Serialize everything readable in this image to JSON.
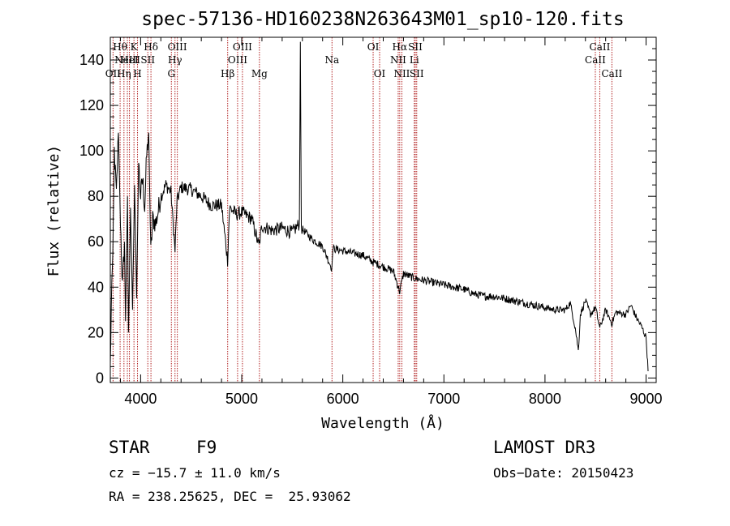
{
  "chart_data": {
    "type": "line",
    "title": "spec-57136-HD160238N263643M01_sp10-120.fits",
    "xlabel": "Wavelength (Å)",
    "ylabel": "Flux (relative)",
    "xlim": [
      3700,
      9100
    ],
    "ylim": [
      -2,
      150
    ],
    "x_ticks": [
      4000,
      5000,
      6000,
      7000,
      8000,
      9000
    ],
    "y_ticks": [
      0,
      20,
      40,
      60,
      80,
      100,
      120,
      140
    ],
    "grid": false,
    "series": [
      {
        "name": "flux",
        "anchors": [
          [
            3700,
            5
          ],
          [
            3710,
            30
          ],
          [
            3725,
            55
          ],
          [
            3740,
            100
          ],
          [
            3760,
            80
          ],
          [
            3780,
            108
          ],
          [
            3800,
            70
          ],
          [
            3820,
            40
          ],
          [
            3840,
            60
          ],
          [
            3850,
            25
          ],
          [
            3870,
            80
          ],
          [
            3880,
            20
          ],
          [
            3900,
            75
          ],
          [
            3920,
            30
          ],
          [
            3940,
            85
          ],
          [
            3960,
            35
          ],
          [
            3980,
            95
          ],
          [
            4000,
            80
          ],
          [
            4020,
            88
          ],
          [
            4040,
            75
          ],
          [
            4060,
            98
          ],
          [
            4080,
            108
          ],
          [
            4100,
            55
          ],
          [
            4120,
            70
          ],
          [
            4150,
            68
          ],
          [
            4200,
            80
          ],
          [
            4250,
            85
          ],
          [
            4300,
            82
          ],
          [
            4340,
            56
          ],
          [
            4360,
            78
          ],
          [
            4400,
            84
          ],
          [
            4500,
            83
          ],
          [
            4600,
            80
          ],
          [
            4700,
            76
          ],
          [
            4800,
            76
          ],
          [
            4860,
            52
          ],
          [
            4880,
            75
          ],
          [
            4950,
            72
          ],
          [
            5000,
            73
          ],
          [
            5100,
            70
          ],
          [
            5170,
            58
          ],
          [
            5200,
            67
          ],
          [
            5300,
            65
          ],
          [
            5400,
            66
          ],
          [
            5500,
            64
          ],
          [
            5570,
            68
          ],
          [
            5580,
            148
          ],
          [
            5590,
            66
          ],
          [
            5700,
            61
          ],
          [
            5800,
            58
          ],
          [
            5893,
            48
          ],
          [
            5900,
            57
          ],
          [
            6000,
            56
          ],
          [
            6100,
            55
          ],
          [
            6200,
            54
          ],
          [
            6300,
            51
          ],
          [
            6400,
            49
          ],
          [
            6500,
            47
          ],
          [
            6563,
            38
          ],
          [
            6600,
            46
          ],
          [
            6700,
            44
          ],
          [
            6800,
            43
          ],
          [
            6900,
            42
          ],
          [
            7000,
            41
          ],
          [
            7100,
            40
          ],
          [
            7200,
            39
          ],
          [
            7300,
            37
          ],
          [
            7400,
            36
          ],
          [
            7500,
            36
          ],
          [
            7600,
            35
          ],
          [
            7700,
            34
          ],
          [
            7800,
            33
          ],
          [
            7900,
            32
          ],
          [
            8000,
            31
          ],
          [
            8100,
            30
          ],
          [
            8200,
            30
          ],
          [
            8250,
            33
          ],
          [
            8300,
            22
          ],
          [
            8330,
            12
          ],
          [
            8350,
            28
          ],
          [
            8400,
            34
          ],
          [
            8450,
            28
          ],
          [
            8500,
            31
          ],
          [
            8542,
            22
          ],
          [
            8600,
            30
          ],
          [
            8662,
            24
          ],
          [
            8700,
            29
          ],
          [
            8800,
            28
          ],
          [
            8850,
            32
          ],
          [
            8900,
            27
          ],
          [
            8950,
            23
          ],
          [
            9000,
            18
          ],
          [
            9020,
            3
          ]
        ]
      }
    ],
    "spectral_lines": [
      {
        "x": 3727,
        "label": "OII",
        "row": 3
      },
      {
        "x": 3797,
        "label": "Hθ",
        "row": 1
      },
      {
        "x": 3835,
        "label": "Hη",
        "row": 3
      },
      {
        "x": 3869,
        "label": "NeIII",
        "row": 2
      },
      {
        "x": 3889,
        "label": "HeI",
        "row": 2
      },
      {
        "x": 3934,
        "label": "K",
        "row": 1
      },
      {
        "x": 3969,
        "label": "H",
        "row": 3
      },
      {
        "x": 4071,
        "label": "SII",
        "row": 2
      },
      {
        "x": 4102,
        "label": "Hδ",
        "row": 1
      },
      {
        "x": 4304,
        "label": "G",
        "row": 3
      },
      {
        "x": 4340,
        "label": "Hγ",
        "row": 2
      },
      {
        "x": 4363,
        "label": "OIII",
        "row": 1
      },
      {
        "x": 4861,
        "label": "Hβ",
        "row": 3
      },
      {
        "x": 4959,
        "label": "OIII",
        "row": 2
      },
      {
        "x": 5007,
        "label": "OIII",
        "row": 1
      },
      {
        "x": 5175,
        "label": "Mg",
        "row": 3
      },
      {
        "x": 5893,
        "label": "Na",
        "row": 2
      },
      {
        "x": 6300,
        "label": "OI",
        "row": 1
      },
      {
        "x": 6364,
        "label": "OI",
        "row": 3
      },
      {
        "x": 6548,
        "label": "NII",
        "row": 2
      },
      {
        "x": 6563,
        "label": "Hα",
        "row": 1
      },
      {
        "x": 6584,
        "label": "NII",
        "row": 3
      },
      {
        "x": 6707,
        "label": "Li",
        "row": 2
      },
      {
        "x": 6717,
        "label": "SII",
        "row": 1
      },
      {
        "x": 6731,
        "label": "SII",
        "row": 3
      },
      {
        "x": 8498,
        "label": "CaII",
        "row": 2
      },
      {
        "x": 8542,
        "label": "CaII",
        "row": 1
      },
      {
        "x": 8662,
        "label": "CaII",
        "row": 3
      }
    ]
  },
  "info": {
    "object_class": "STAR",
    "subclass": "F9",
    "survey": "LAMOST DR3",
    "redshift": "cz = −15.7 ± 11.0 km/s",
    "obs_date": "Obs−Date: 20150423",
    "coords": "RA = 238.25625, DEC =  25.93062"
  },
  "colors": {
    "line_marker": "#b22222",
    "spectrum": "#000000"
  }
}
